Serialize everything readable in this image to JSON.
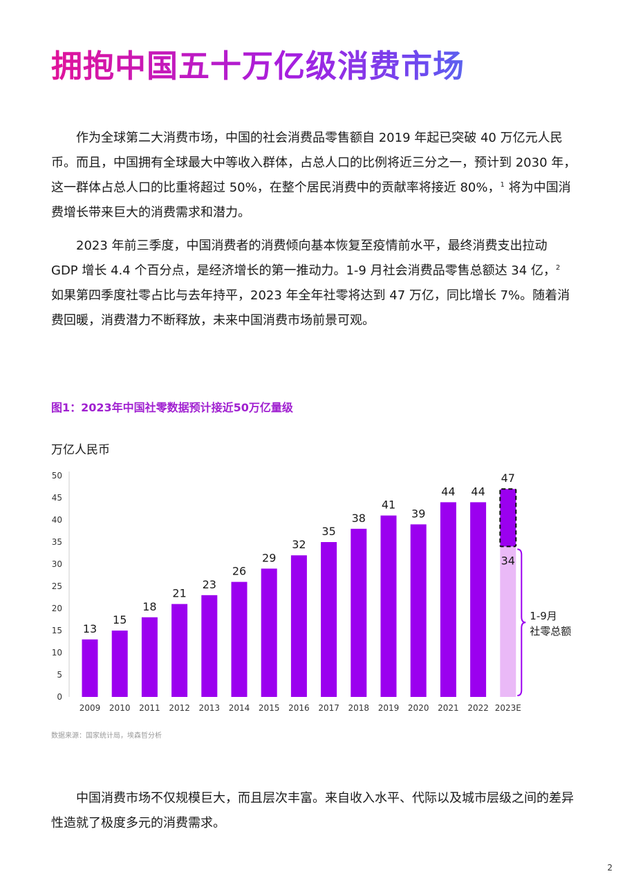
{
  "title": "拥抱中国五十万亿级消费市场",
  "paragraphs": {
    "p1_text": "作为全球第二大消费市场，中国的社会消费品零售额自 2019 年起已突破 40 万亿元人民币。而且，中国拥有全球最大中等收入群体，占总人口的比例将近三分之一，预计到 2030 年，这一群体占总人口的比重将超过 50%，在整个居民消费中的贡献率将接近 80%，",
    "p1_note": "1",
    "p1_tail": " 将为中国消费增长带来巨大的消费需求和潜力。",
    "p2_text": "2023 年前三季度，中国消费者的消费倾向基本恢复至疫情前水平，最终消费支出拉动 GDP 增长 4.4 个百分点，是经济增长的第一推动力。1-9 月社会消费品零售总额达 34 亿，",
    "p2_note": "2",
    "p2_tail": " 如果第四季度社零占比与去年持平，2023 年全年社零将达到 47 万亿，同比增长 7%。随着消费回暖，消费潜力不断释放，未来中国消费市场前景可观。",
    "p3_text": "中国消费市场不仅规模巨大，而且层次丰富。来自收入水平、代际以及城市层级之间的差异性造就了极度多元的消费需求。"
  },
  "figure": {
    "title": "图1：2023年中国社零数据预计接近50万亿量级",
    "unit": "万亿人民币",
    "source": "数据来源：国家统计局，埃森哲分析"
  },
  "chart_data": {
    "type": "bar",
    "title": "图1：2023年中国社零数据预计接近50万亿量级",
    "ylabel": "万亿人民币",
    "xlabel": "",
    "ylim": [
      0,
      50
    ],
    "yticks": [
      "0",
      "5",
      "10",
      "15",
      "20",
      "25",
      "30",
      "35",
      "40",
      "45",
      "50"
    ],
    "grid": false,
    "categories": [
      "2009",
      "2010",
      "2011",
      "2012",
      "2013",
      "2014",
      "2015",
      "2016",
      "2017",
      "2018",
      "2019",
      "2020",
      "2021",
      "2022",
      "2023E"
    ],
    "values": [
      13,
      15,
      18,
      21,
      23,
      26,
      29,
      32,
      35,
      38,
      41,
      39,
      44,
      44,
      47
    ],
    "labels": [
      "13",
      "15",
      "18",
      "21",
      "23",
      "26",
      "29",
      "32",
      "35",
      "38",
      "41",
      "39",
      "44",
      "44",
      "47"
    ],
    "partial": {
      "category": "2023E",
      "value": 34,
      "label": "34",
      "annotation": "1-9月社零总额",
      "annotation_lines": [
        "1-9月",
        "社零总额"
      ]
    },
    "colors": {
      "bar": "#9b00ef",
      "partial": "#eab9f7"
    }
  },
  "page_number": "2"
}
